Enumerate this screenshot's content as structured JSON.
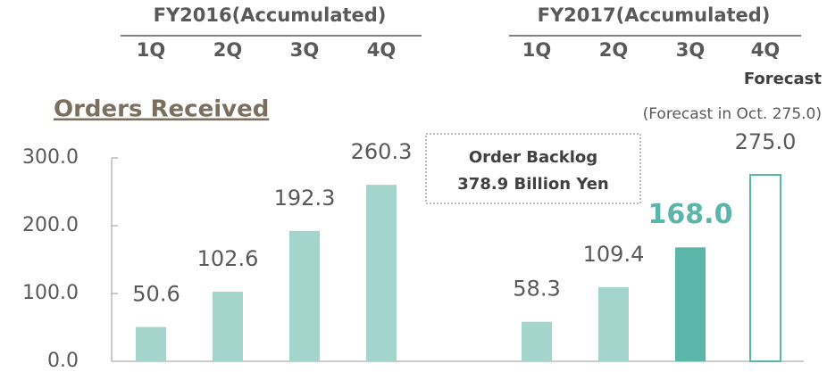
{
  "chart_data": {
    "type": "bar",
    "title": "Orders Received",
    "groups": [
      "FY2016(Accumulated)",
      "FY2017(Accumulated)"
    ],
    "categories": [
      "1Q",
      "2Q",
      "3Q",
      "4Q",
      "1Q",
      "2Q",
      "3Q",
      "4Q"
    ],
    "forecast_label": "Forecast",
    "values": [
      50.6,
      102.6,
      192.3,
      260.3,
      58.3,
      109.4,
      168,
      275
    ],
    "value_labels": [
      "50.6",
      "102.6",
      "192.3",
      "260.3",
      "58.3",
      "109.4",
      "168.0",
      "275.0"
    ],
    "colors": [
      "#a3d5cc",
      "#a3d5cc",
      "#a3d5cc",
      "#a3d5cc",
      "#a3d5cc",
      "#a3d5cc",
      "#5bb5a8",
      "#5bb5a8"
    ],
    "bar_styles": [
      "solid",
      "solid",
      "solid",
      "solid",
      "solid",
      "solid",
      "solid",
      "outline"
    ],
    "highlight_index": 6,
    "annotations": [
      "(Forecast in Oct. 275.0)",
      "Order Backlog",
      "378.9 Billion Yen"
    ],
    "ylim": [
      0,
      300
    ],
    "yticks": [
      {
        "value": 0,
        "label": "0.0"
      },
      {
        "value": 100,
        "label": "100.0"
      },
      {
        "value": 200,
        "label": "200.0"
      },
      {
        "value": 300,
        "label": "300.0"
      }
    ]
  }
}
